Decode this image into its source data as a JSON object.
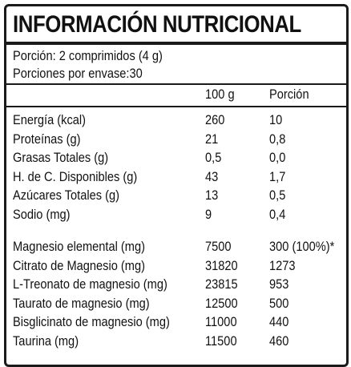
{
  "title": "INFORMACIÓN NUTRICIONAL",
  "serving": {
    "portion": "Porción: 2 comprimidos (4 g)",
    "servings_per_container": "Porciones por envase:30"
  },
  "columns": {
    "per_100g": "100 g",
    "per_portion": "Porción"
  },
  "group1": [
    {
      "name": "Energía (kcal)",
      "per_100g": "260",
      "per_portion": "10"
    },
    {
      "name": "Proteínas (g)",
      "per_100g": "21",
      "per_portion": "0,8"
    },
    {
      "name": "Grasas Totales (g)",
      "per_100g": "0,5",
      "per_portion": "0,0"
    },
    {
      "name": "H. de C. Disponibles (g)",
      "per_100g": "43",
      "per_portion": "1,7"
    },
    {
      "name": "Azúcares Totales (g)",
      "per_100g": "13",
      "per_portion": "0,5"
    },
    {
      "name": "Sodio (mg)",
      "per_100g": "9",
      "per_portion": "0,4"
    }
  ],
  "group2": [
    {
      "name": "Magnesio elemental (mg)",
      "per_100g": "7500",
      "per_portion": "300 (100%)*"
    },
    {
      "name": "Citrato de Magnesio (mg)",
      "per_100g": "31820",
      "per_portion": "1273"
    },
    {
      "name": "L-Treonato de magnesio (mg)",
      "per_100g": "23815",
      "per_portion": "953"
    },
    {
      "name": "Taurato de magnesio (mg)",
      "per_100g": "12500",
      "per_portion": "500"
    },
    {
      "name": "Bisglicinato de magnesio (mg)",
      "per_100g": "11000",
      "per_portion": "440"
    },
    {
      "name": "Taurina (mg)",
      "per_100g": "11500",
      "per_portion": "460"
    }
  ]
}
